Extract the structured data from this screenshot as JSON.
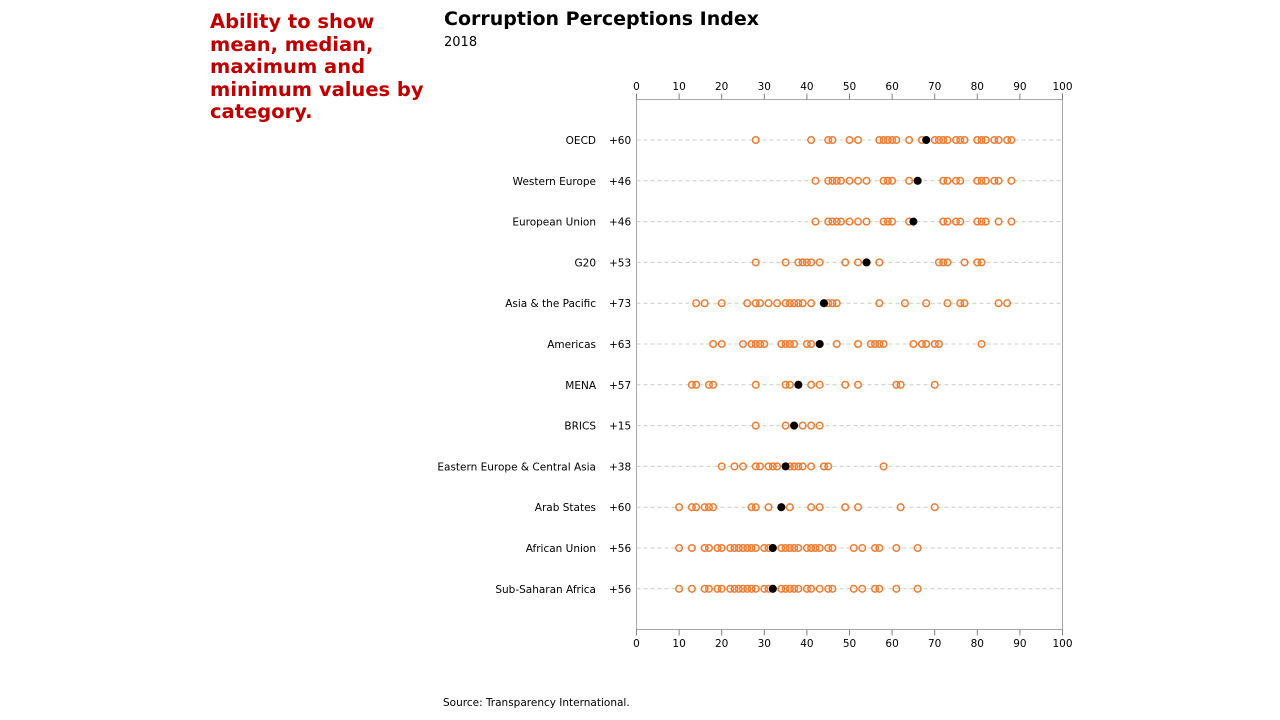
{
  "caption": "Ability to show mean, median, maximum and minimum values by category.",
  "source": "Source: Transparency International.",
  "colors": {
    "caption": "#c00000",
    "point": "#ed7d31",
    "mean_marker": "#000000",
    "gridline": "#cccccc"
  },
  "chart_data": {
    "type": "scatter",
    "title": "Corruption Perceptions Index",
    "subtitle": "2018",
    "xlim": [
      0,
      100
    ],
    "xticks": [
      0,
      10,
      20,
      30,
      40,
      50,
      60,
      70,
      80,
      90,
      100
    ],
    "x_axis_top": true,
    "x_axis_bottom": true,
    "grid": "dashed horizontal per category",
    "categories": [
      {
        "name": "OECD",
        "range_label": "+60",
        "marker": 68,
        "points": [
          28,
          41,
          45,
          46,
          50,
          52,
          57,
          58,
          59,
          60,
          61,
          64,
          67,
          70,
          71,
          72,
          73,
          75,
          76,
          77,
          80,
          81,
          82,
          84,
          85,
          87,
          88
        ]
      },
      {
        "name": "Western Europe",
        "range_label": "+46",
        "marker": 66,
        "points": [
          42,
          45,
          46,
          47,
          48,
          50,
          52,
          54,
          58,
          59,
          60,
          64,
          66,
          72,
          73,
          75,
          76,
          80,
          81,
          82,
          84,
          85,
          88
        ]
      },
      {
        "name": "European Union",
        "range_label": "+46",
        "marker": 65,
        "points": [
          42,
          45,
          46,
          47,
          48,
          50,
          52,
          54,
          58,
          59,
          60,
          64,
          72,
          73,
          75,
          76,
          80,
          81,
          82,
          85,
          88
        ]
      },
      {
        "name": "G20",
        "range_label": "+53",
        "marker": 54,
        "points": [
          28,
          35,
          38,
          39,
          40,
          41,
          43,
          49,
          52,
          54,
          57,
          71,
          72,
          73,
          77,
          80,
          81
        ]
      },
      {
        "name": "Asia & the Pacific",
        "range_label": "+73",
        "marker": 44,
        "points": [
          14,
          16,
          20,
          26,
          28,
          29,
          31,
          33,
          35,
          36,
          37,
          38,
          39,
          41,
          44,
          45,
          46,
          47,
          57,
          63,
          68,
          73,
          76,
          77,
          85,
          87
        ]
      },
      {
        "name": "Americas",
        "range_label": "+63",
        "marker": 43,
        "points": [
          18,
          20,
          25,
          27,
          28,
          29,
          30,
          34,
          35,
          36,
          37,
          40,
          41,
          43,
          47,
          52,
          55,
          56,
          57,
          58,
          65,
          67,
          68,
          70,
          71,
          81
        ]
      },
      {
        "name": "MENA",
        "range_label": "+57",
        "marker": 38,
        "points": [
          13,
          14,
          17,
          18,
          28,
          35,
          36,
          38,
          41,
          43,
          49,
          52,
          61,
          62,
          70
        ]
      },
      {
        "name": "BRICS",
        "range_label": "+15",
        "marker": 37,
        "points": [
          28,
          35,
          37,
          39,
          41,
          43
        ]
      },
      {
        "name": "Eastern Europe & Central Asia",
        "range_label": "+38",
        "marker": 35,
        "points": [
          20,
          23,
          25,
          28,
          29,
          31,
          32,
          33,
          35,
          36,
          37,
          38,
          39,
          41,
          44,
          45,
          58
        ]
      },
      {
        "name": "Arab States",
        "range_label": "+60",
        "marker": 34,
        "points": [
          10,
          13,
          14,
          16,
          17,
          18,
          27,
          28,
          31,
          34,
          36,
          41,
          43,
          49,
          52,
          62,
          70
        ]
      },
      {
        "name": "African Union",
        "range_label": "+56",
        "marker": 32,
        "points": [
          10,
          13,
          16,
          17,
          19,
          20,
          22,
          23,
          24,
          25,
          26,
          27,
          28,
          30,
          31,
          32,
          34,
          35,
          36,
          37,
          38,
          40,
          41,
          42,
          43,
          45,
          46,
          51,
          53,
          56,
          57,
          61,
          66
        ]
      },
      {
        "name": "Sub-Saharan Africa",
        "range_label": "+56",
        "marker": 32,
        "points": [
          10,
          13,
          16,
          17,
          19,
          20,
          22,
          23,
          24,
          25,
          26,
          27,
          28,
          30,
          31,
          32,
          34,
          35,
          36,
          37,
          38,
          40,
          41,
          43,
          45,
          46,
          51,
          53,
          56,
          57,
          61,
          66
        ]
      }
    ]
  }
}
